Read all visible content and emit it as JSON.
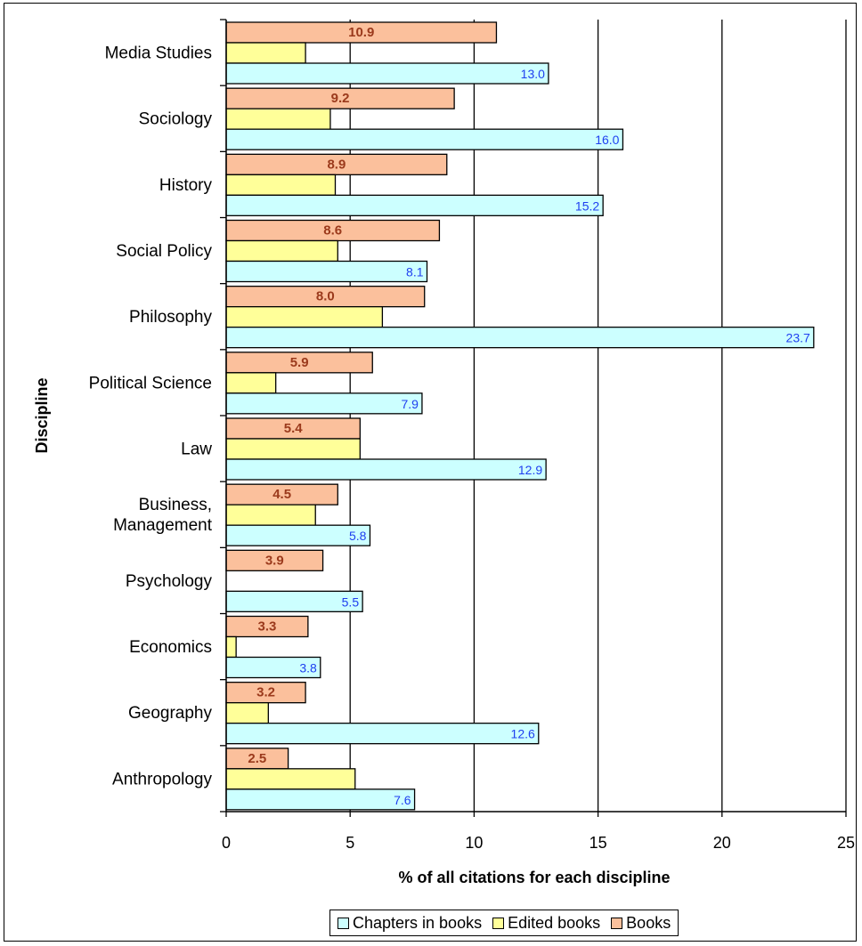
{
  "chart_data": {
    "type": "bar",
    "orientation": "horizontal",
    "title": "",
    "xlabel": "% of all citations for each discipline",
    "ylabel": "Discipline",
    "xlim": [
      0,
      25
    ],
    "xticks": [
      "0",
      "5",
      "10",
      "15",
      "20",
      "25"
    ],
    "grid": "vertical major gridlines",
    "legend_position": "bottom",
    "categories": [
      [
        "Media Studies"
      ],
      [
        "Sociology"
      ],
      [
        "History"
      ],
      [
        "Social Policy"
      ],
      [
        "Philosophy"
      ],
      [
        "Political Science"
      ],
      [
        "Law"
      ],
      [
        "Business,",
        "Management"
      ],
      [
        "Psychology"
      ],
      [
        "Economics"
      ],
      [
        "Geography"
      ],
      [
        "Anthropology"
      ]
    ],
    "series": [
      {
        "name": "Books",
        "color": "#FBC09C",
        "label_color": "#9B3A1C",
        "values": [
          10.9,
          9.2,
          8.9,
          8.6,
          8.0,
          5.9,
          5.4,
          4.5,
          3.9,
          3.3,
          3.2,
          2.5
        ],
        "value_labels": [
          "10.9",
          "9.2",
          "8.9",
          "8.6",
          "8.0",
          "5.9",
          "5.4",
          "4.5",
          "3.9",
          "3.3",
          "3.2",
          "2.5"
        ]
      },
      {
        "name": "Edited books",
        "color": "#FFFF99",
        "values": [
          3.2,
          4.2,
          4.4,
          4.5,
          6.3,
          2.0,
          5.4,
          3.6,
          0.0,
          0.4,
          1.7,
          5.2
        ]
      },
      {
        "name": "Chapters in books",
        "color": "#CCFFFF",
        "label_color": "#1F3FF0",
        "values": [
          13.0,
          16.0,
          15.2,
          8.1,
          23.7,
          7.9,
          12.9,
          5.8,
          5.5,
          3.8,
          12.6,
          7.6
        ],
        "value_labels": [
          "13.0",
          "16.0",
          "15.2",
          "8.1",
          "23.7",
          "7.9",
          "12.9",
          "5.8",
          "5.5",
          "3.8",
          "12.6",
          "7.6"
        ]
      }
    ]
  },
  "legend": {
    "items": [
      {
        "label": "Chapters in books",
        "color": "#CCFFFF"
      },
      {
        "label": "Edited books",
        "color": "#FFFF99"
      },
      {
        "label": "Books",
        "color": "#FBC09C"
      }
    ]
  }
}
